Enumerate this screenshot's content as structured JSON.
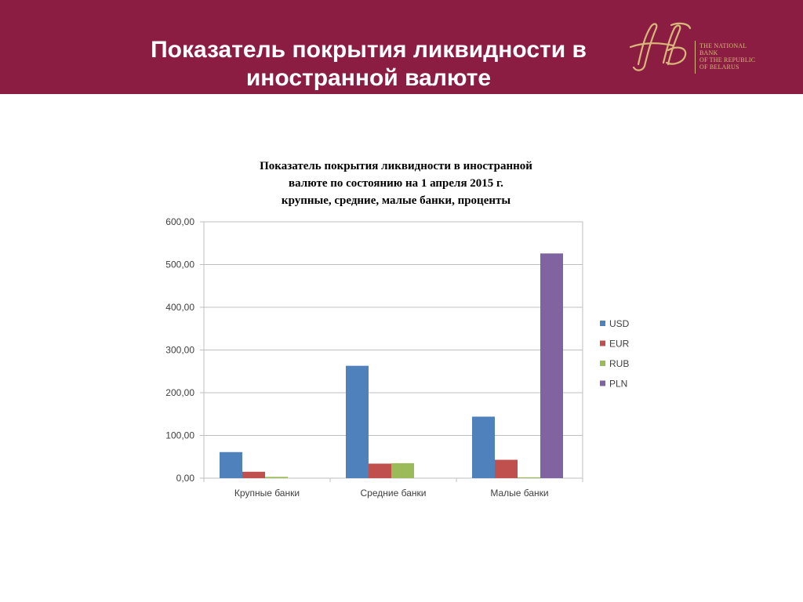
{
  "slide": {
    "title": "Показатель покрытия ликвидности в\nиностранной валюте"
  },
  "logo": {
    "lines": [
      "THE NATIONAL",
      "BANK",
      "OF THE REPUBLIC",
      "OF BELARUS"
    ],
    "color": "#d9b77a"
  },
  "colors": {
    "header": "#8b1d42"
  },
  "chart_data": {
    "type": "bar",
    "title_lines": [
      "Показатель покрытия ликвидности в иностранной",
      "валюте по состоянию на 1 апреля 2015 г.",
      "крупные, средние, малые банки, проценты"
    ],
    "categories": [
      "Крупные банки",
      "Средние банки",
      "Малые банки"
    ],
    "series": [
      {
        "name": "USD",
        "color": "#4f81bd",
        "values": [
          61,
          263,
          144
        ]
      },
      {
        "name": "EUR",
        "color": "#c0504d",
        "values": [
          15,
          34,
          43
        ]
      },
      {
        "name": "RUB",
        "color": "#9bbb59",
        "values": [
          3,
          35,
          2
        ]
      },
      {
        "name": "PLN",
        "color": "#8064a2",
        "values": [
          0,
          0,
          526
        ]
      }
    ],
    "ylim": [
      0,
      600
    ],
    "yticks": [
      "0,00",
      "100,00",
      "200,00",
      "300,00",
      "400,00",
      "500,00",
      "600,00"
    ],
    "ytick_values": [
      0,
      100,
      200,
      300,
      400,
      500,
      600
    ],
    "grid": true,
    "legend": "right",
    "xlabel": "",
    "ylabel": ""
  }
}
